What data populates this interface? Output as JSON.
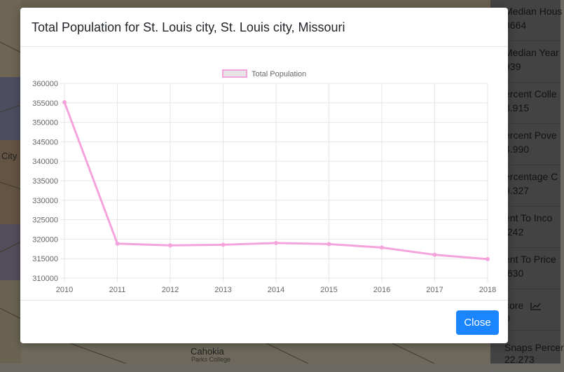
{
  "map": {
    "labels": [
      {
        "text": "City"
      },
      {
        "text": "Cahokia"
      },
      {
        "text": "Parks College"
      }
    ]
  },
  "side_panel": {
    "items": [
      {
        "label": "Median Hous",
        "value": "8664"
      },
      {
        "label": "Median Year",
        "value": "939"
      },
      {
        "label": "ercent Colle",
        "value": "8.915"
      },
      {
        "label": "ercent Pove",
        "value": "4.990"
      },
      {
        "label": "ercentage C",
        "value": "9.327"
      },
      {
        "label": "ent To Inco",
        "value": ".242"
      },
      {
        "label": "ent To Price",
        "value": ".630"
      },
      {
        "label": "core",
        "value": "0",
        "icon": "trend-chart-icon"
      },
      {
        "label": "Snaps Percer",
        "value": "22.273"
      }
    ]
  },
  "modal": {
    "title": "Total Population for St. Louis city, St. Louis city, Missouri",
    "close_label": "Close"
  },
  "colors": {
    "series_line": "#f5a3dc",
    "series_fill": "#e5e5e5",
    "button": "#1a85ff"
  },
  "chart_data": {
    "type": "line",
    "title": "",
    "legend": "top-center",
    "grid": true,
    "x": [
      "2010",
      "2011",
      "2012",
      "2013",
      "2014",
      "2015",
      "2016",
      "2017",
      "2018"
    ],
    "series": [
      {
        "name": "Total Population",
        "values": [
          355151,
          318860,
          318416,
          318574,
          319008,
          318737,
          317850,
          315993,
          314887
        ]
      }
    ],
    "ylim": [
      310000,
      360000
    ],
    "yticks": [
      "360000",
      "355000",
      "350000",
      "345000",
      "340000",
      "335000",
      "330000",
      "325000",
      "320000",
      "315000",
      "310000"
    ]
  }
}
